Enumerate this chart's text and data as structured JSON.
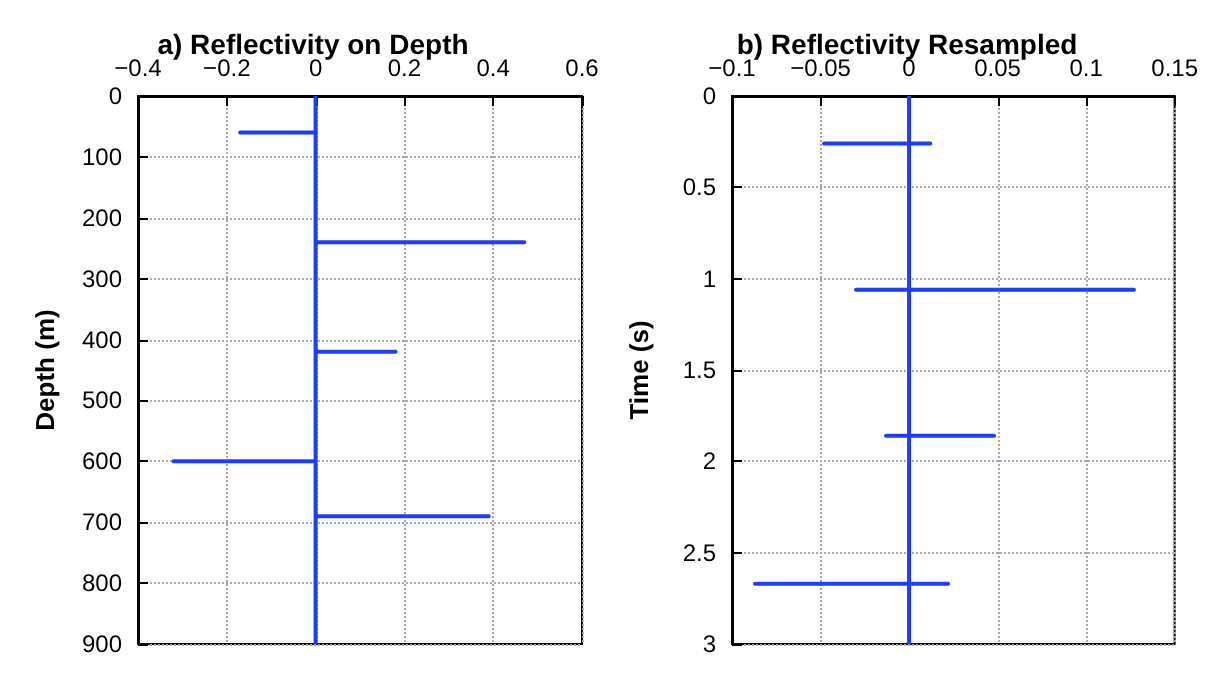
{
  "chart_data": [
    {
      "type": "line",
      "title": "a) Reflectivity on Depth",
      "ylabel": "Depth (m)",
      "color": "#1f3dff",
      "grid": true,
      "x": [
        0,
        0,
        -0.17,
        0,
        0,
        0.47,
        0,
        0,
        0.18,
        0,
        0,
        -0.32,
        0,
        0,
        0.39,
        0,
        0
      ],
      "values": [
        0,
        60,
        60,
        60,
        240,
        240,
        240,
        420,
        420,
        420,
        600,
        600,
        600,
        690,
        690,
        690,
        900
      ],
      "xlim": [
        -0.4,
        0.6
      ],
      "xticks": [
        -0.4,
        -0.2,
        0,
        0.2,
        0.4,
        0.6
      ],
      "ylim": [
        900,
        0
      ],
      "yticks": [
        0,
        100,
        200,
        300,
        400,
        500,
        600,
        700,
        800,
        900
      ]
    },
    {
      "type": "line",
      "title": "b) Reflectivity Resampled",
      "ylabel": "Time (s)",
      "color": "#1f3dff",
      "grid": true,
      "x": [
        0,
        0,
        -0.048,
        0.012,
        0,
        0,
        -0.03,
        0.127,
        0,
        0,
        -0.013,
        0.048,
        0,
        0,
        -0.087,
        0.022,
        0,
        0
      ],
      "values": [
        0,
        0.26,
        0.26,
        0.26,
        0.26,
        1.06,
        1.06,
        1.06,
        1.06,
        1.86,
        1.86,
        1.86,
        1.86,
        2.67,
        2.67,
        2.67,
        2.67,
        3
      ],
      "xlim": [
        -0.1,
        0.15
      ],
      "xticks": [
        -0.1,
        -0.05,
        0,
        0.05,
        0.1,
        0.15
      ],
      "ylim": [
        3,
        0
      ],
      "yticks": [
        0,
        0.5,
        1,
        1.5,
        2,
        2.5,
        3
      ]
    }
  ]
}
